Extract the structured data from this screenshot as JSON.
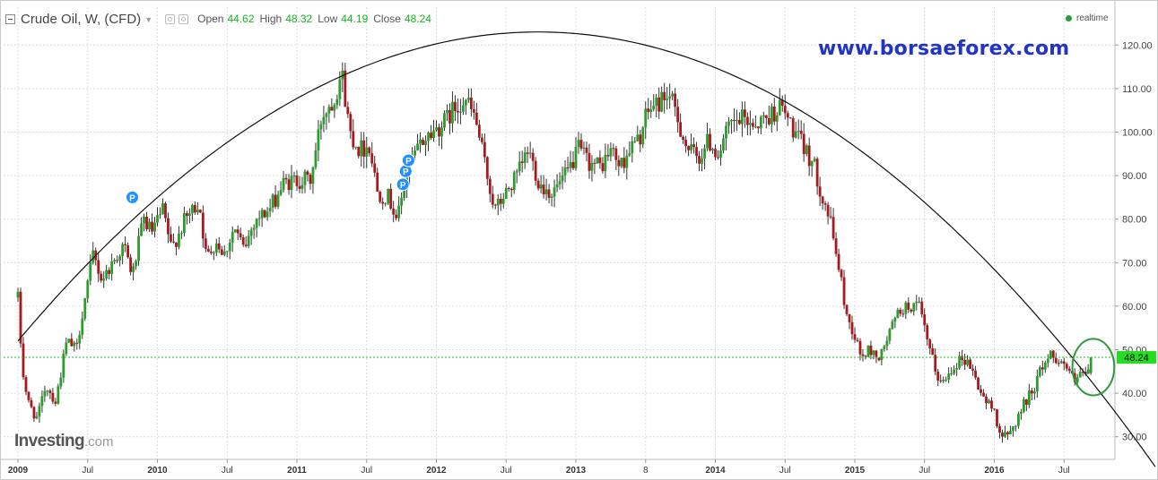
{
  "header": {
    "title": "Crude Oil, W, (CFD)",
    "open_label": "Open",
    "open_value": "44.62",
    "high_label": "High",
    "high_value": "48.32",
    "low_label": "Low",
    "low_value": "44.19",
    "close_label": "Close",
    "close_value": "48.24"
  },
  "realtime_label": "realtime",
  "watermark": "www.borsaeforex.com",
  "logo": {
    "main": "Investing",
    "suffix": ".com"
  },
  "marker_label": "P",
  "colors": {
    "up": "#2a9d2a",
    "down": "#a8181c",
    "price_line": "#22bb22",
    "price_tag": "#22dd22",
    "marker": "#1e90ff",
    "arc": "#111111",
    "circle": "#2a9d3a"
  },
  "chart_data": {
    "type": "candlestick",
    "interval": "weekly",
    "ylim": [
      25,
      125
    ],
    "y_ticks": [
      "30.00",
      "40.00",
      "50.00",
      "60.00",
      "70.00",
      "80.00",
      "90.00",
      "100.00",
      "110.00",
      "120.00"
    ],
    "x_ticks": [
      "2009",
      "Jul",
      "2010",
      "Jul",
      "2011",
      "Jul",
      "2012",
      "Jul",
      "2013",
      "8",
      "2014",
      "Jul",
      "2015",
      "Jul",
      "2016",
      "Jul"
    ],
    "current_price": "48.24",
    "price_anchors": [
      [
        2009.0,
        62
      ],
      [
        2009.03,
        46
      ],
      [
        2009.07,
        38
      ],
      [
        2009.14,
        34
      ],
      [
        2009.2,
        42
      ],
      [
        2009.27,
        38
      ],
      [
        2009.35,
        52
      ],
      [
        2009.42,
        50
      ],
      [
        2009.47,
        60
      ],
      [
        2009.54,
        72
      ],
      [
        2009.6,
        66
      ],
      [
        2009.68,
        70
      ],
      [
        2009.76,
        74
      ],
      [
        2009.82,
        67
      ],
      [
        2009.9,
        80
      ],
      [
        2009.96,
        77
      ],
      [
        2010.04,
        82
      ],
      [
        2010.1,
        73
      ],
      [
        2010.2,
        80
      ],
      [
        2010.3,
        84
      ],
      [
        2010.35,
        71
      ],
      [
        2010.42,
        75
      ],
      [
        2010.48,
        72
      ],
      [
        2010.55,
        78
      ],
      [
        2010.62,
        73
      ],
      [
        2010.7,
        80
      ],
      [
        2010.8,
        82
      ],
      [
        2010.9,
        88
      ],
      [
        2011.0,
        89
      ],
      [
        2011.1,
        89
      ],
      [
        2011.18,
        104
      ],
      [
        2011.27,
        108
      ],
      [
        2011.32,
        114
      ],
      [
        2011.38,
        100
      ],
      [
        2011.45,
        96
      ],
      [
        2011.52,
        97
      ],
      [
        2011.58,
        86
      ],
      [
        2011.66,
        85
      ],
      [
        2011.72,
        80
      ],
      [
        2011.8,
        92
      ],
      [
        2011.9,
        98
      ],
      [
        2011.97,
        100
      ],
      [
        2012.05,
        102
      ],
      [
        2012.12,
        105
      ],
      [
        2012.2,
        108
      ],
      [
        2012.28,
        103
      ],
      [
        2012.35,
        92
      ],
      [
        2012.42,
        82
      ],
      [
        2012.5,
        86
      ],
      [
        2012.58,
        90
      ],
      [
        2012.66,
        96
      ],
      [
        2012.74,
        88
      ],
      [
        2012.83,
        86
      ],
      [
        2012.93,
        90
      ],
      [
        2013.02,
        96
      ],
      [
        2013.1,
        93
      ],
      [
        2013.18,
        92
      ],
      [
        2013.25,
        96
      ],
      [
        2013.32,
        92
      ],
      [
        2013.38,
        96
      ],
      [
        2013.45,
        98
      ],
      [
        2013.52,
        105
      ],
      [
        2013.6,
        107
      ],
      [
        2013.66,
        109
      ],
      [
        2013.72,
        104
      ],
      [
        2013.8,
        96
      ],
      [
        2013.88,
        94
      ],
      [
        2013.95,
        98
      ],
      [
        2014.02,
        95
      ],
      [
        2014.1,
        101
      ],
      [
        2014.2,
        103
      ],
      [
        2014.3,
        102
      ],
      [
        2014.4,
        104
      ],
      [
        2014.46,
        106
      ],
      [
        2014.52,
        103
      ],
      [
        2014.6,
        98
      ],
      [
        2014.7,
        93
      ],
      [
        2014.76,
        86
      ],
      [
        2014.82,
        80
      ],
      [
        2014.88,
        70
      ],
      [
        2014.94,
        58
      ],
      [
        2015.0,
        53
      ],
      [
        2015.05,
        48
      ],
      [
        2015.1,
        50
      ],
      [
        2015.18,
        48
      ],
      [
        2015.26,
        55
      ],
      [
        2015.32,
        59
      ],
      [
        2015.4,
        60
      ],
      [
        2015.46,
        60
      ],
      [
        2015.52,
        52
      ],
      [
        2015.58,
        45
      ],
      [
        2015.62,
        42
      ],
      [
        2015.7,
        46
      ],
      [
        2015.76,
        48
      ],
      [
        2015.82,
        47
      ],
      [
        2015.88,
        42
      ],
      [
        2015.94,
        38
      ],
      [
        2016.0,
        36
      ],
      [
        2016.05,
        30
      ],
      [
        2016.1,
        30
      ],
      [
        2016.16,
        34
      ],
      [
        2016.22,
        38
      ],
      [
        2016.28,
        41
      ],
      [
        2016.34,
        46
      ],
      [
        2016.4,
        49
      ],
      [
        2016.45,
        48
      ],
      [
        2016.52,
        46
      ],
      [
        2016.58,
        42
      ],
      [
        2016.62,
        45
      ],
      [
        2016.65,
        43
      ],
      [
        2016.68,
        46
      ],
      [
        2016.7,
        48.24
      ]
    ],
    "markers": [
      {
        "label": "P",
        "date": 2009.82,
        "price": 85
      },
      {
        "label": "P",
        "date": 2011.76,
        "price": 88
      },
      {
        "label": "P",
        "date": 2011.78,
        "price": 91
      },
      {
        "label": "P",
        "date": 2011.8,
        "price": 93.5
      }
    ],
    "arc": {
      "start": [
        2009.0,
        52
      ],
      "peak": [
        2012.73,
        123
      ],
      "end": [
        2016.98,
        34
      ]
    },
    "circle_highlight": {
      "center": [
        2016.71,
        46
      ],
      "radius_years": 0.15,
      "radius_price": 6.5
    }
  }
}
